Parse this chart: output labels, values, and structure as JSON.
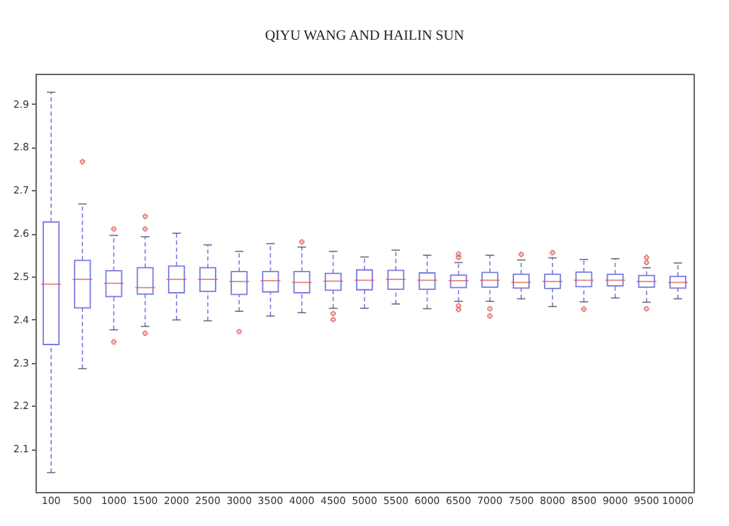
{
  "chart_data": {
    "type": "box",
    "title": "QIYU WANG AND HAILIN SUN",
    "categories": [
      "100",
      "500",
      "1000",
      "1500",
      "2000",
      "2500",
      "3000",
      "3500",
      "4000",
      "4500",
      "5000",
      "5500",
      "6000",
      "6500",
      "7000",
      "7500",
      "8000",
      "8500",
      "9000",
      "9500",
      "10000"
    ],
    "boxes": [
      {
        "low": 2.045,
        "q1": 2.342,
        "median": 2.482,
        "q3": 2.626,
        "high": 2.927
      },
      {
        "low": 2.286,
        "q1": 2.427,
        "median": 2.493,
        "q3": 2.537,
        "high": 2.668,
        "outliers": [
          2.766
        ]
      },
      {
        "low": 2.376,
        "q1": 2.453,
        "median": 2.484,
        "q3": 2.513,
        "high": 2.595,
        "outliers": [
          2.61,
          2.348
        ]
      },
      {
        "low": 2.384,
        "q1": 2.459,
        "median": 2.474,
        "q3": 2.52,
        "high": 2.592,
        "outliers": [
          2.639,
          2.61,
          2.368
        ]
      },
      {
        "low": 2.399,
        "q1": 2.462,
        "median": 2.493,
        "q3": 2.524,
        "high": 2.6
      },
      {
        "low": 2.397,
        "q1": 2.465,
        "median": 2.493,
        "q3": 2.52,
        "high": 2.573
      },
      {
        "low": 2.419,
        "q1": 2.458,
        "median": 2.488,
        "q3": 2.511,
        "high": 2.558,
        "outliers": [
          2.372
        ]
      },
      {
        "low": 2.408,
        "q1": 2.464,
        "median": 2.49,
        "q3": 2.511,
        "high": 2.576
      },
      {
        "low": 2.416,
        "q1": 2.462,
        "median": 2.486,
        "q3": 2.511,
        "high": 2.568,
        "outliers": [
          2.58
        ]
      },
      {
        "low": 2.426,
        "q1": 2.468,
        "median": 2.489,
        "q3": 2.507,
        "high": 2.558,
        "outliers": [
          2.414,
          2.4
        ]
      },
      {
        "low": 2.426,
        "q1": 2.469,
        "median": 2.491,
        "q3": 2.515,
        "high": 2.545
      },
      {
        "low": 2.436,
        "q1": 2.47,
        "median": 2.493,
        "q3": 2.514,
        "high": 2.561
      },
      {
        "low": 2.425,
        "q1": 2.47,
        "median": 2.491,
        "q3": 2.508,
        "high": 2.549
      },
      {
        "low": 2.442,
        "q1": 2.474,
        "median": 2.49,
        "q3": 2.503,
        "high": 2.532,
        "outliers": [
          2.552,
          2.544,
          2.432,
          2.423
        ]
      },
      {
        "low": 2.442,
        "q1": 2.475,
        "median": 2.491,
        "q3": 2.509,
        "high": 2.549,
        "outliers": [
          2.425,
          2.408
        ]
      },
      {
        "low": 2.448,
        "q1": 2.473,
        "median": 2.486,
        "q3": 2.505,
        "high": 2.538,
        "outliers": [
          2.551
        ]
      },
      {
        "low": 2.43,
        "q1": 2.472,
        "median": 2.488,
        "q3": 2.505,
        "high": 2.543,
        "outliers": [
          2.555
        ]
      },
      {
        "low": 2.441,
        "q1": 2.476,
        "median": 2.491,
        "q3": 2.51,
        "high": 2.539,
        "outliers": [
          2.424
        ]
      },
      {
        "low": 2.45,
        "q1": 2.478,
        "median": 2.491,
        "q3": 2.505,
        "high": 2.541
      },
      {
        "low": 2.44,
        "q1": 2.475,
        "median": 2.488,
        "q3": 2.502,
        "high": 2.52,
        "outliers": [
          2.544,
          2.532,
          2.425
        ]
      },
      {
        "low": 2.448,
        "q1": 2.473,
        "median": 2.486,
        "q3": 2.5,
        "high": 2.531
      }
    ],
    "color": "#7b7be0",
    "ylim": [
      2.0,
      2.97
    ],
    "yticks": [
      2.1,
      2.2,
      2.3,
      2.4,
      2.5,
      2.6,
      2.7,
      2.8,
      2.9
    ],
    "grid": false,
    "marker": "cross",
    "line_style": "dashed"
  }
}
